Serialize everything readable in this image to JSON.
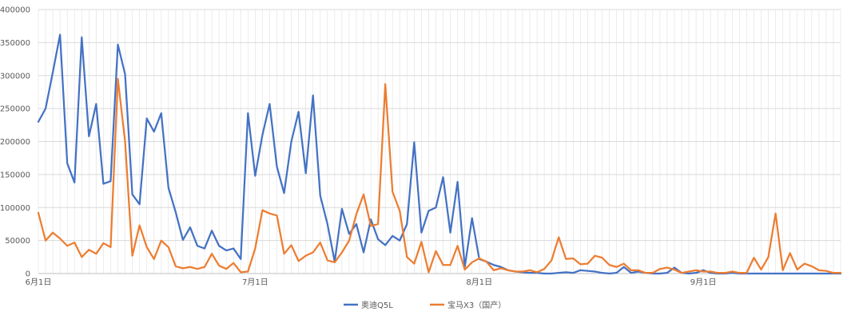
{
  "chart_data": {
    "type": "line",
    "title": "",
    "xlabel": "",
    "ylabel": "",
    "ylim": [
      0,
      400000
    ],
    "yticks": [
      0,
      50000,
      100000,
      150000,
      200000,
      250000,
      300000,
      350000,
      400000
    ],
    "grid": "horizontal and vertical gridlines",
    "legend_position": "bottom",
    "x_labels": [
      {
        "label": "6月1日",
        "index": 0
      },
      {
        "label": "7月1日",
        "index": 30
      },
      {
        "label": "8月1日",
        "index": 61
      },
      {
        "label": "9月1日",
        "index": 92
      }
    ],
    "point_count": 112,
    "series": [
      {
        "name": "奥迪Q5L",
        "color": "#4472C4",
        "values": [
          230000,
          250000,
          305000,
          362000,
          167000,
          138000,
          358000,
          208000,
          257000,
          136000,
          140000,
          347000,
          302000,
          120000,
          105000,
          235000,
          215000,
          243000,
          130000,
          93000,
          51000,
          70000,
          42000,
          38000,
          65000,
          42000,
          35000,
          38000,
          22000,
          243000,
          148000,
          210000,
          257000,
          162000,
          122000,
          200000,
          245000,
          152000,
          270000,
          118000,
          75000,
          18000,
          98000,
          60000,
          75000,
          32000,
          82000,
          52000,
          43000,
          57000,
          50000,
          75000,
          199000,
          62000,
          95000,
          100000,
          146000,
          62000,
          139000,
          10000,
          84000,
          22000,
          18000,
          13000,
          10000,
          5000,
          3000,
          2000,
          1000,
          1000,
          0,
          0,
          1000,
          2000,
          1000,
          5000,
          4000,
          3000,
          1000,
          0,
          1000,
          10000,
          1000,
          3000,
          1000,
          0,
          0,
          1000,
          9000,
          1000,
          0,
          1000,
          5000,
          1000,
          0,
          0,
          1000,
          0,
          0,
          0,
          0,
          0,
          0,
          0,
          0,
          0,
          0,
          0,
          0,
          0,
          0,
          0
        ]
      },
      {
        "name": "宝马X3（国产）",
        "color": "#ED7D31",
        "values": [
          92000,
          50000,
          62000,
          53000,
          42000,
          47000,
          25000,
          36000,
          30000,
          46000,
          40000,
          295000,
          200000,
          27000,
          73000,
          40000,
          22000,
          50000,
          40000,
          11000,
          8000,
          10000,
          7000,
          10000,
          30000,
          12000,
          7000,
          16000,
          2000,
          3000,
          38000,
          96000,
          91000,
          88000,
          30000,
          43000,
          19000,
          27000,
          32000,
          47000,
          20000,
          17000,
          32000,
          50000,
          90000,
          120000,
          72000,
          75000,
          287000,
          124000,
          95000,
          25000,
          15000,
          48000,
          2000,
          34000,
          13000,
          13000,
          42000,
          6000,
          17000,
          23000,
          18000,
          5000,
          8000,
          5000,
          3000,
          3000,
          5000,
          2000,
          7000,
          20000,
          55000,
          22000,
          23000,
          14000,
          15000,
          27000,
          24000,
          13000,
          10000,
          15000,
          5000,
          5000,
          1000,
          1000,
          7000,
          9000,
          6000,
          1000,
          3000,
          5000,
          3000,
          3000,
          1000,
          1000,
          3000,
          1000,
          1000,
          24000,
          6000,
          25000,
          91000,
          5000,
          31000,
          6000,
          15000,
          11000,
          5000,
          4000,
          1000,
          1000
        ]
      }
    ]
  }
}
